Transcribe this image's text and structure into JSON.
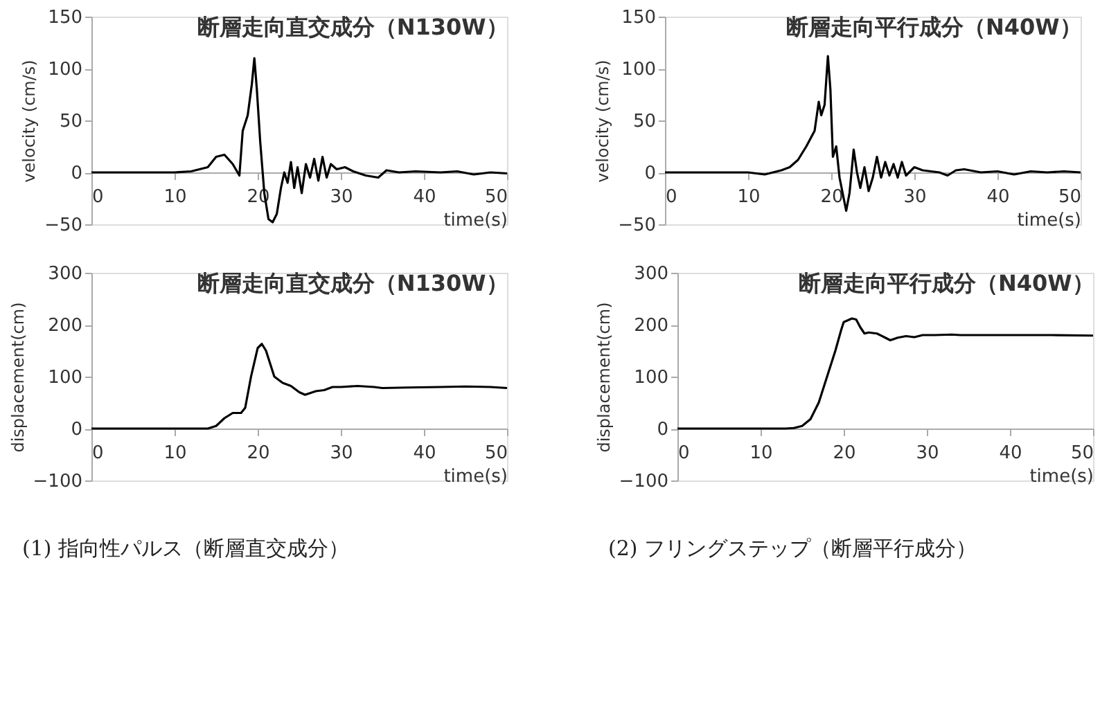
{
  "chart_data": [
    {
      "type": "line",
      "title": "断層走向直交成分（N130W）",
      "xlabel": "time(s)",
      "ylabel": "velocity (cm/s)",
      "xlim": [
        0,
        50
      ],
      "xticks": [
        0,
        10,
        20,
        30,
        40,
        50
      ],
      "ylim": [
        -50,
        150
      ],
      "yticks": [
        -50,
        0,
        50,
        100,
        150
      ],
      "grid": false,
      "marker": "none",
      "line_style": "solid",
      "series": [
        {
          "color": "#000000",
          "x": [
            0,
            10,
            12,
            14,
            15,
            16,
            17,
            17.8,
            18.2,
            18.8,
            19.3,
            19.6,
            19.9,
            20.3,
            20.8,
            21.3,
            21.8,
            22.3,
            22.8,
            23.2,
            23.6,
            24,
            24.4,
            24.8,
            25.3,
            25.8,
            26.3,
            26.8,
            27.3,
            27.8,
            28.3,
            28.8,
            29.5,
            30.5,
            31.5,
            33,
            34.5,
            35.5,
            37,
            39,
            42,
            44,
            46,
            48,
            50
          ],
          "values": [
            0,
            0,
            1,
            5,
            15,
            17,
            8,
            -3,
            40,
            55,
            85,
            110,
            80,
            30,
            -20,
            -45,
            -48,
            -40,
            -15,
            0,
            -10,
            10,
            -15,
            5,
            -20,
            8,
            -5,
            13,
            -8,
            15,
            -5,
            8,
            3,
            5,
            1,
            -3,
            -5,
            2,
            0,
            1,
            0,
            1,
            -2,
            0,
            -1
          ]
        }
      ]
    },
    {
      "type": "line",
      "title": "断層走向平行成分（N40W）",
      "xlabel": "time(s)",
      "ylabel": "velocity (cm/s)",
      "xlim": [
        0,
        50
      ],
      "xticks": [
        0,
        10,
        20,
        30,
        40,
        50
      ],
      "ylim": [
        -50,
        150
      ],
      "yticks": [
        -50,
        0,
        50,
        100,
        150
      ],
      "grid": false,
      "marker": "none",
      "line_style": "solid",
      "series": [
        {
          "color": "#000000",
          "x": [
            0,
            10,
            12,
            14,
            15,
            16,
            17,
            18,
            18.5,
            18.8,
            19.2,
            19.6,
            19.9,
            20.2,
            20.6,
            21,
            21.5,
            21.8,
            22.2,
            22.7,
            23.1,
            23.5,
            24,
            24.5,
            25,
            25.5,
            26,
            26.5,
            27,
            27.5,
            28,
            28.5,
            29,
            30,
            31,
            33,
            34,
            35,
            36,
            38,
            40,
            42,
            44,
            46,
            48,
            50
          ],
          "values": [
            0,
            0,
            -2,
            2,
            5,
            12,
            25,
            40,
            68,
            55,
            65,
            112,
            80,
            15,
            25,
            -5,
            -25,
            -37,
            -20,
            22,
            0,
            -15,
            5,
            -18,
            -5,
            15,
            -5,
            10,
            -3,
            8,
            -5,
            10,
            -3,
            5,
            2,
            0,
            -3,
            2,
            3,
            0,
            1,
            -2,
            1,
            0,
            1,
            0
          ]
        }
      ]
    },
    {
      "type": "line",
      "title": "断層走向直交成分（N130W）",
      "xlabel": "time(s)",
      "ylabel": "displacement(cm)",
      "xlim": [
        0,
        50
      ],
      "xticks": [
        0,
        10,
        20,
        30,
        40,
        50
      ],
      "ylim": [
        -100,
        300
      ],
      "yticks": [
        -100,
        0,
        100,
        200,
        300
      ],
      "grid": false,
      "marker": "none",
      "line_style": "solid",
      "annotations": [
        "(1) 指向性パルス（断層直交成分）"
      ],
      "series": [
        {
          "color": "#000000",
          "x": [
            0,
            14,
            15,
            16,
            17,
            18,
            18.5,
            19.2,
            20,
            20.5,
            21,
            22,
            23,
            24,
            25,
            25.7,
            27,
            28,
            29,
            30,
            32,
            34,
            35,
            38,
            42,
            45,
            48,
            50
          ],
          "values": [
            0,
            0,
            5,
            20,
            30,
            30,
            40,
            100,
            155,
            163,
            150,
            100,
            88,
            82,
            70,
            65,
            72,
            74,
            80,
            80,
            82,
            80,
            78,
            79,
            80,
            81,
            80,
            78
          ]
        }
      ]
    },
    {
      "type": "line",
      "title": "断層走向平行成分（N40W）",
      "xlabel": "time(s)",
      "ylabel": "displacement(cm)",
      "xlim": [
        0,
        50
      ],
      "xticks": [
        0,
        10,
        20,
        30,
        40,
        50
      ],
      "ylim": [
        -100,
        300
      ],
      "yticks": [
        -100,
        0,
        100,
        200,
        300
      ],
      "grid": false,
      "marker": "none",
      "line_style": "solid",
      "annotations": [
        "(2) フリングステップ（断層平行成分）"
      ],
      "series": [
        {
          "color": "#000000",
          "x": [
            0,
            13,
            14,
            15,
            16,
            17,
            18,
            19,
            19.7,
            20,
            21,
            21.5,
            22,
            22.5,
            23,
            24,
            25,
            25.6,
            26.5,
            27.5,
            28.5,
            29.5,
            31,
            33,
            34,
            36,
            40,
            45,
            50
          ],
          "values": [
            0,
            0,
            1,
            5,
            18,
            50,
            100,
            150,
            190,
            205,
            212,
            210,
            195,
            183,
            185,
            183,
            175,
            170,
            175,
            178,
            176,
            180,
            180,
            181,
            180,
            180,
            180,
            180,
            179
          ]
        }
      ]
    }
  ]
}
